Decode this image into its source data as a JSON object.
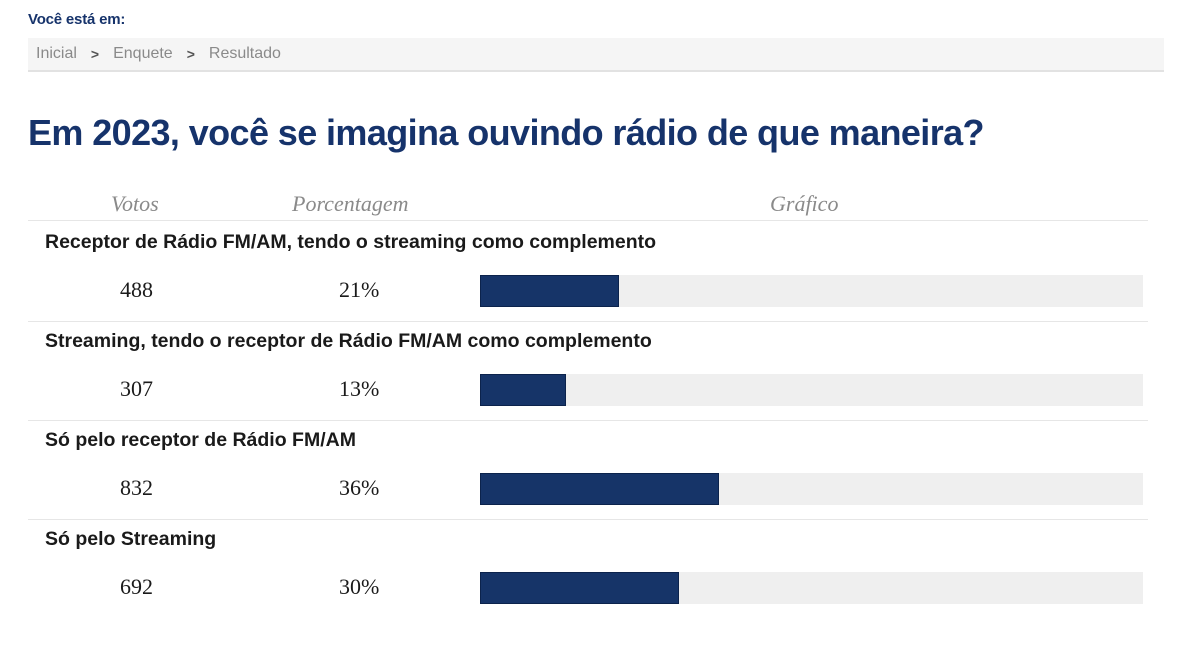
{
  "location_label": "Você está em:",
  "breadcrumb": [
    {
      "label": "Inicial"
    },
    {
      "label": "Enquete"
    },
    {
      "label": "Resultado"
    }
  ],
  "breadcrumb_separator": ">",
  "poll": {
    "title": "Em 2023, você se imagina ouvindo rádio de que maneira?"
  },
  "columns": {
    "votes": "Votos",
    "percent": "Porcentagem",
    "chart": "Gráfico"
  },
  "options": [
    {
      "label": "Receptor de Rádio FM/AM, tendo o streaming como complemento",
      "votes": "488",
      "percent": "21%",
      "fill_fraction": 0.21
    },
    {
      "label": "Streaming, tendo o receptor de Rádio FM/AM como complemento",
      "votes": "307",
      "percent": "13%",
      "fill_fraction": 0.13
    },
    {
      "label": "Só pelo receptor de Rádio FM/AM",
      "votes": "832",
      "percent": "36%",
      "fill_fraction": 0.36
    },
    {
      "label": "Só pelo Streaming",
      "votes": "692",
      "percent": "30%",
      "fill_fraction": 0.3
    }
  ],
  "colors": {
    "accent": "#16336b",
    "bar": "#163468",
    "bar_track": "#efefef"
  }
}
